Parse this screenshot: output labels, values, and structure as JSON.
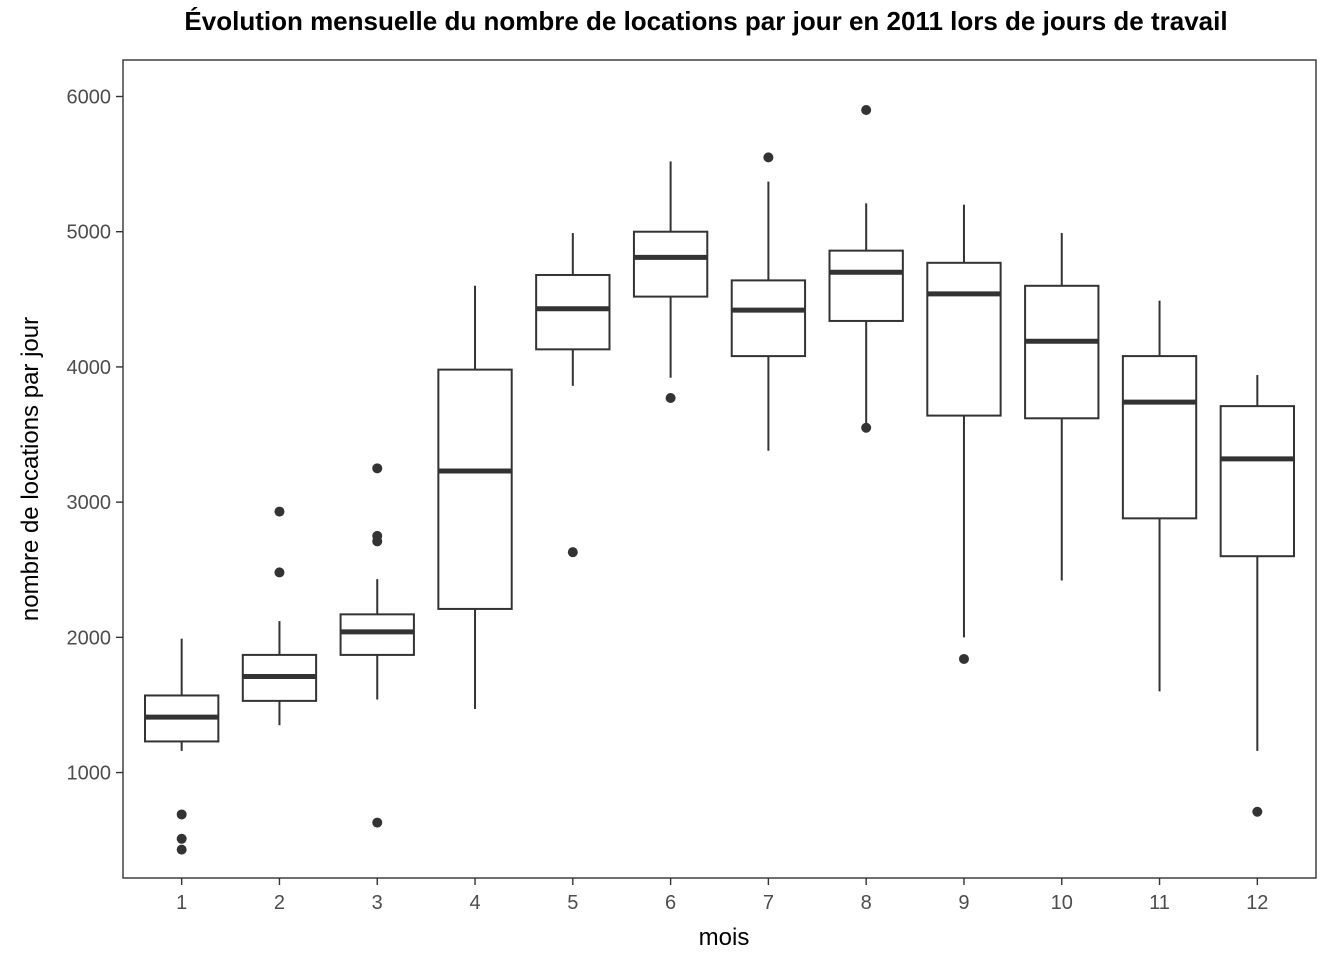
{
  "chart_data": {
    "type": "boxplot",
    "title": "Évolution mensuelle du nombre de locations par jour en 2011 lors de jours de travail",
    "xlabel": "mois",
    "ylabel": "nombre de locations par jour",
    "categories": [
      "1",
      "2",
      "3",
      "4",
      "5",
      "6",
      "7",
      "8",
      "9",
      "10",
      "11",
      "12"
    ],
    "y_ticks": [
      1000,
      2000,
      3000,
      4000,
      5000,
      6000
    ],
    "ylim": [
      220,
      6270
    ],
    "grid": false,
    "boxes": [
      {
        "category": "1",
        "whisker_low": 1160,
        "q1": 1230,
        "median": 1410,
        "q3": 1570,
        "whisker_high": 1990,
        "outliers": [
          690,
          510,
          430
        ]
      },
      {
        "category": "2",
        "whisker_low": 1350,
        "q1": 1530,
        "median": 1710,
        "q3": 1870,
        "whisker_high": 2120,
        "outliers": [
          2930,
          2480
        ]
      },
      {
        "category": "3",
        "whisker_low": 1540,
        "q1": 1870,
        "median": 2040,
        "q3": 2170,
        "whisker_high": 2430,
        "outliers": [
          3250,
          2750,
          2710,
          630
        ]
      },
      {
        "category": "4",
        "whisker_low": 1470,
        "q1": 2210,
        "median": 3230,
        "q3": 3980,
        "whisker_high": 4600,
        "outliers": []
      },
      {
        "category": "5",
        "whisker_low": 3860,
        "q1": 4130,
        "median": 4430,
        "q3": 4680,
        "whisker_high": 4990,
        "outliers": [
          2630
        ]
      },
      {
        "category": "6",
        "whisker_low": 3920,
        "q1": 4520,
        "median": 4810,
        "q3": 5000,
        "whisker_high": 5520,
        "outliers": [
          3770
        ]
      },
      {
        "category": "7",
        "whisker_low": 3380,
        "q1": 4080,
        "median": 4420,
        "q3": 4640,
        "whisker_high": 5370,
        "outliers": [
          5550
        ]
      },
      {
        "category": "8",
        "whisker_low": 3580,
        "q1": 4340,
        "median": 4700,
        "q3": 4860,
        "whisker_high": 5210,
        "outliers": [
          5900,
          3550
        ]
      },
      {
        "category": "9",
        "whisker_low": 2000,
        "q1": 3640,
        "median": 4540,
        "q3": 4770,
        "whisker_high": 5200,
        "outliers": [
          1840
        ]
      },
      {
        "category": "10",
        "whisker_low": 2420,
        "q1": 3620,
        "median": 4190,
        "q3": 4600,
        "whisker_high": 4990,
        "outliers": []
      },
      {
        "category": "11",
        "whisker_low": 1600,
        "q1": 2880,
        "median": 3740,
        "q3": 4080,
        "whisker_high": 4490,
        "outliers": []
      },
      {
        "category": "12",
        "whisker_low": 1160,
        "q1": 2600,
        "median": 3320,
        "q3": 3710,
        "whisker_high": 3940,
        "outliers": [
          710
        ]
      }
    ],
    "colors": {
      "box_fill": "#ffffff",
      "box_line": "#333333",
      "axis_line": "#333333",
      "tick_text": "#4d4d4d",
      "text": "#000000"
    }
  }
}
